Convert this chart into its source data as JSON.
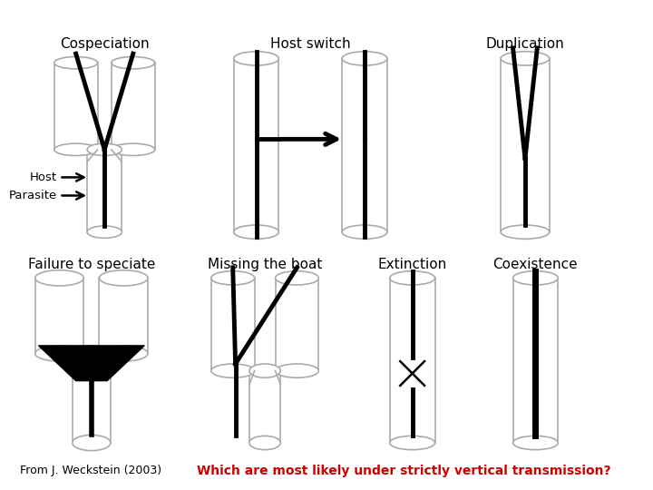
{
  "background_color": "#ffffff",
  "labels": {
    "cospeciation": "Cospeciation",
    "host_switch": "Host switch",
    "duplication": "Duplication",
    "failure": "Failure to speciate",
    "missing": "Missing the boat",
    "extinction": "Extinction",
    "coexistence": "Coexistence",
    "host": "Host",
    "parasite": "Parasite",
    "citation": "From J. Weckstein (2003)",
    "question": "Which are most likely under strictly vertical transmission?"
  },
  "label_fontsize": 11,
  "citation_fontsize": 9,
  "question_fontsize": 10,
  "question_color": "#cc0000",
  "line_color": "#000000",
  "tree_lw": 3.5,
  "cyl_color": "#aaaaaa",
  "cyl_lw": 1.2
}
